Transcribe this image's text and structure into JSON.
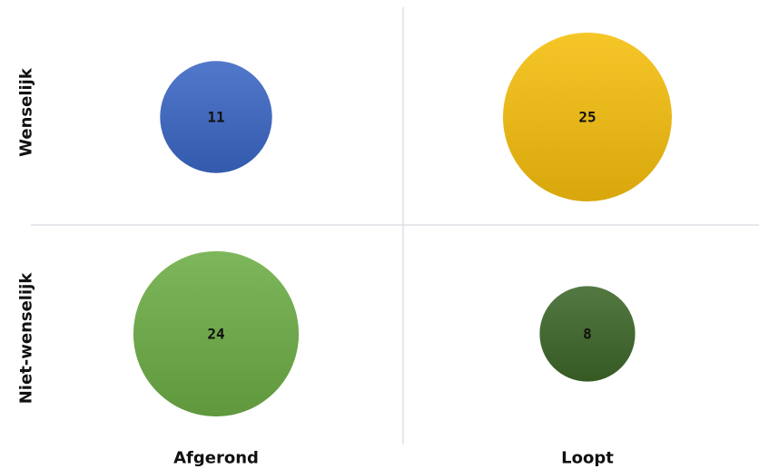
{
  "chart_data": {
    "type": "bubble",
    "columns": [
      "Afgerond",
      "Loopt"
    ],
    "rows": [
      "Wenselijk",
      "Niet-wenselijk"
    ],
    "grid": true,
    "points": [
      {
        "column": "Afgerond",
        "row": "Wenselijk",
        "value": 11,
        "label": "11",
        "color": "#3a66c4"
      },
      {
        "column": "Loopt",
        "row": "Wenselijk",
        "value": 25,
        "label": "25",
        "color": "#f5be0c"
      },
      {
        "column": "Afgerond",
        "row": "Niet-wenselijk",
        "value": 24,
        "label": "24",
        "color": "#6cad45"
      },
      {
        "column": "Loopt",
        "row": "Niet-wenselijk",
        "value": 8,
        "label": "8",
        "color": "#3d6628"
      }
    ]
  }
}
